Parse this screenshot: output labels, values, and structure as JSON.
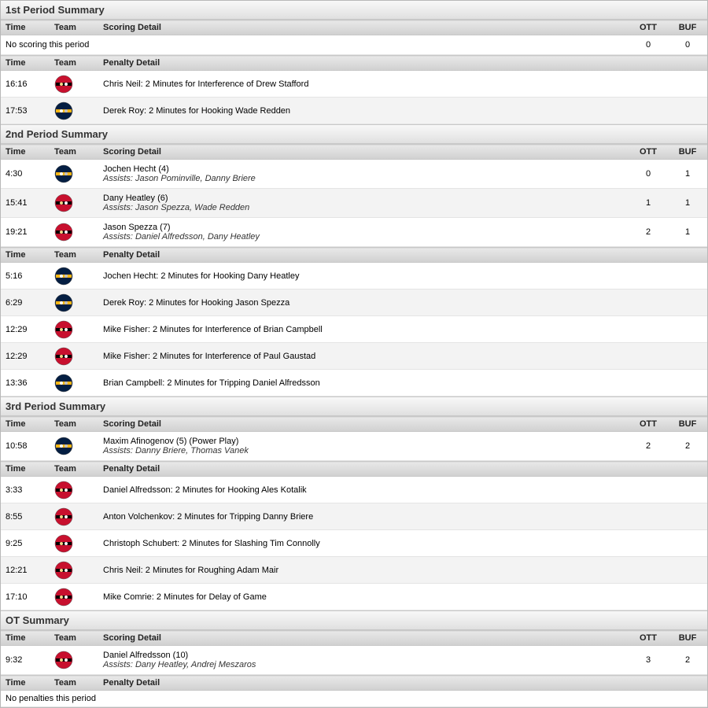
{
  "labels": {
    "time": "Time",
    "team": "Team",
    "scoring_detail": "Scoring Detail",
    "penalty_detail": "Penalty Detail",
    "no_scoring": "No scoring this period",
    "no_penalties": "No penalties this period",
    "assists_prefix": "Assists: "
  },
  "score_cols": [
    "OTT",
    "BUF"
  ],
  "teams": {
    "ott": {
      "bg": "#c8102e",
      "band": "#000000",
      "c1": "#f5d98b",
      "c2": "#ffffff"
    },
    "buf": {
      "bg": "#041e42",
      "band": "#fcb514",
      "c1": "#ffffff",
      "c2": "#c0c0c0"
    }
  },
  "periods": [
    {
      "title": "1st Period Summary",
      "scoring": [],
      "no_score_totals": [
        0,
        0
      ],
      "penalties": [
        {
          "time": "16:16",
          "team": "ott",
          "text": "Chris Neil: 2 Minutes for Interference of Drew Stafford"
        },
        {
          "time": "17:53",
          "team": "buf",
          "text": "Derek Roy: 2 Minutes for Hooking Wade Redden"
        }
      ]
    },
    {
      "title": "2nd Period Summary",
      "scoring": [
        {
          "time": "4:30",
          "team": "buf",
          "line1": "Jochen Hecht (4)",
          "line2": "Jason Pominville, Danny Briere",
          "score": [
            0,
            1
          ]
        },
        {
          "time": "15:41",
          "team": "ott",
          "line1": "Dany Heatley (6)",
          "line2": "Jason Spezza, Wade Redden",
          "score": [
            1,
            1
          ]
        },
        {
          "time": "19:21",
          "team": "ott",
          "line1": "Jason Spezza (7)",
          "line2": "Daniel Alfredsson, Dany Heatley",
          "score": [
            2,
            1
          ]
        }
      ],
      "penalties": [
        {
          "time": "5:16",
          "team": "buf",
          "text": "Jochen Hecht: 2 Minutes for Hooking Dany Heatley"
        },
        {
          "time": "6:29",
          "team": "buf",
          "text": "Derek Roy: 2 Minutes for Hooking Jason Spezza"
        },
        {
          "time": "12:29",
          "team": "ott",
          "text": "Mike Fisher: 2 Minutes for Interference of Brian Campbell"
        },
        {
          "time": "12:29",
          "team": "ott",
          "text": "Mike Fisher: 2 Minutes for Interference of Paul Gaustad"
        },
        {
          "time": "13:36",
          "team": "buf",
          "text": "Brian Campbell: 2 Minutes for Tripping Daniel Alfredsson"
        }
      ]
    },
    {
      "title": "3rd Period Summary",
      "scoring": [
        {
          "time": "10:58",
          "team": "buf",
          "line1": "Maxim Afinogenov (5) (Power Play)",
          "line2": "Danny Briere, Thomas Vanek",
          "score": [
            2,
            2
          ]
        }
      ],
      "penalties": [
        {
          "time": "3:33",
          "team": "ott",
          "text": "Daniel Alfredsson: 2 Minutes for Hooking Ales Kotalik"
        },
        {
          "time": "8:55",
          "team": "ott",
          "text": "Anton Volchenkov: 2 Minutes for Tripping Danny Briere"
        },
        {
          "time": "9:25",
          "team": "ott",
          "text": "Christoph Schubert: 2 Minutes for Slashing Tim Connolly"
        },
        {
          "time": "12:21",
          "team": "ott",
          "text": "Chris Neil: 2 Minutes for Roughing Adam Mair"
        },
        {
          "time": "17:10",
          "team": "ott",
          "text": "Mike Comrie: 2 Minutes for Delay of Game"
        }
      ]
    },
    {
      "title": "OT Summary",
      "scoring": [
        {
          "time": "9:32",
          "team": "ott",
          "line1": "Daniel Alfredsson (10)",
          "line2": "Dany Heatley, Andrej Meszaros",
          "score": [
            3,
            2
          ]
        }
      ],
      "penalties": []
    }
  ]
}
